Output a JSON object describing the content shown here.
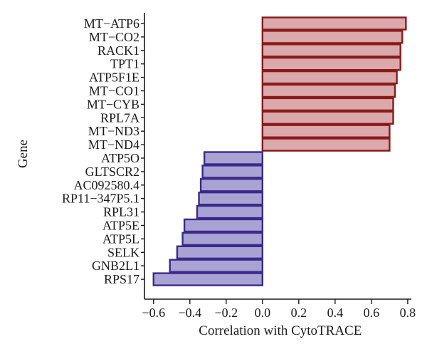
{
  "chart_data": {
    "type": "bar",
    "orientation": "horizontal",
    "xlabel": "Correlation with CytoTRACE",
    "ylabel": "Gene",
    "xlim": [
      -0.65,
      0.82
    ],
    "xticks": [
      -0.6,
      -0.4,
      -0.2,
      0.0,
      0.2,
      0.4,
      0.6,
      0.8
    ],
    "xtick_labels": [
      "−0.6",
      "−0.4",
      "−0.2",
      "0.0",
      "0.2",
      "0.4",
      "0.6",
      "0.8"
    ],
    "grid": false,
    "categories": [
      "MT−ATP6",
      "MT−CO2",
      "RACK1",
      "TPT1",
      "ATP5F1E",
      "MT−CO1",
      "MT−CYB",
      "RPL7A",
      "MT−ND3",
      "MT−ND4",
      "ATP5O",
      "GLTSCR2",
      "AC092580.4",
      "RP11−347P5.1",
      "RPL31",
      "ATP5E",
      "ATP5L",
      "SELK",
      "GNB2L1",
      "RPS17"
    ],
    "values": [
      0.79,
      0.77,
      0.76,
      0.76,
      0.74,
      0.73,
      0.72,
      0.72,
      0.7,
      0.7,
      -0.32,
      -0.33,
      -0.34,
      -0.35,
      -0.36,
      -0.43,
      -0.44,
      -0.47,
      -0.51,
      -0.6
    ],
    "colors": {
      "positive_fill": "#d9a9ab",
      "positive_stroke": "#8b1a1a",
      "negative_fill": "#a9a3d3",
      "negative_stroke": "#3a2a8a",
      "axis": "#1a1a1a"
    }
  }
}
